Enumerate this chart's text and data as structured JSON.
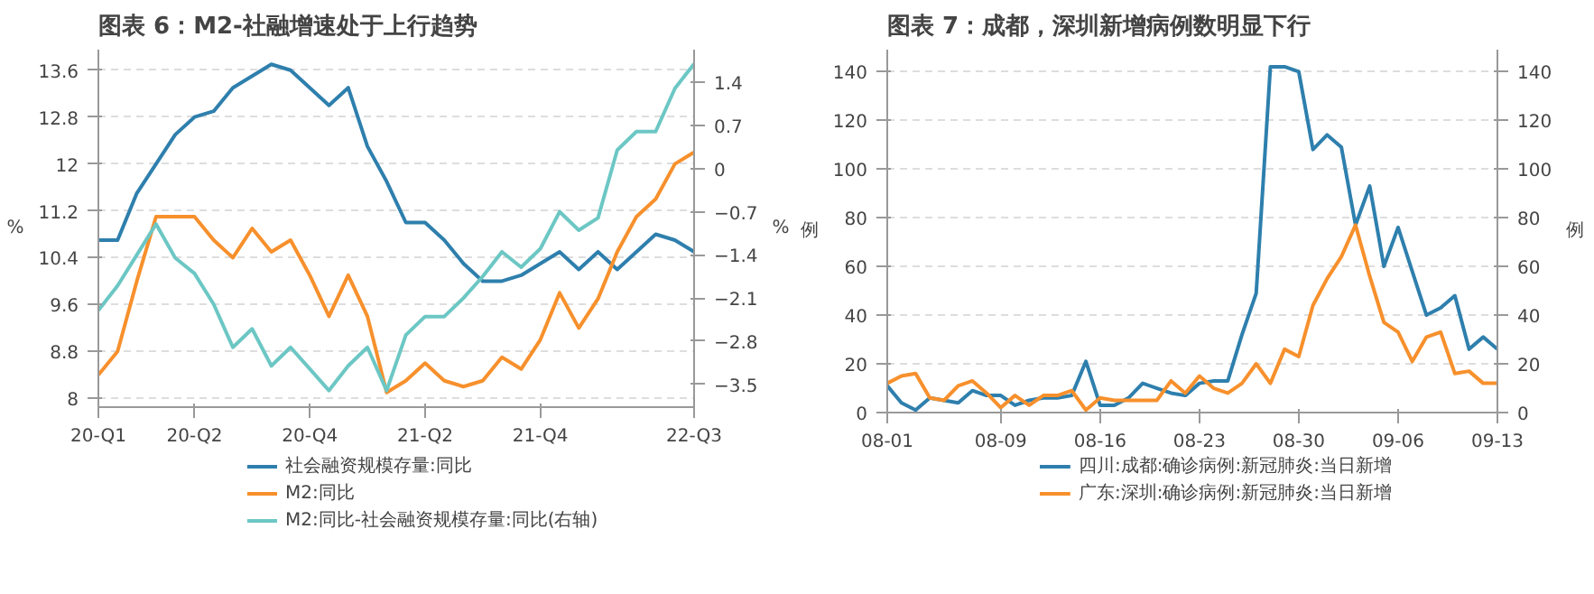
{
  "chart_data": [
    {
      "type": "line",
      "title": "图表 6：M2-社融增速处于上行趋势",
      "ylabel": "%",
      "y2label": "%",
      "categories": [
        "20-Q1",
        null,
        null,
        null,
        null,
        "20-Q2",
        null,
        null,
        null,
        null,
        null,
        "20-Q4",
        null,
        null,
        null,
        null,
        null,
        "21-Q2",
        null,
        null,
        null,
        null,
        null,
        "21-Q4",
        null,
        null,
        null,
        null,
        null,
        null,
        null,
        "22-Q3"
      ],
      "series": [
        {
          "name": "社会融资规模存量:同比",
          "color": "#2e7fad",
          "values": [
            10.7,
            10.7,
            11.5,
            12.0,
            12.5,
            12.8,
            12.9,
            13.3,
            13.5,
            13.7,
            13.6,
            13.3,
            13.0,
            13.3,
            12.3,
            11.7,
            11.0,
            11.0,
            10.7,
            10.3,
            10.0,
            10.0,
            10.1,
            10.3,
            10.5,
            10.2,
            10.5,
            10.2,
            10.5,
            10.8,
            10.7,
            10.5
          ]
        },
        {
          "name": "M2:同比",
          "color": "#f7902c",
          "values": [
            8.4,
            8.8,
            10.0,
            11.1,
            11.1,
            11.1,
            10.7,
            10.4,
            10.9,
            10.5,
            10.7,
            10.1,
            9.4,
            10.1,
            9.4,
            8.1,
            8.3,
            8.6,
            8.3,
            8.2,
            8.3,
            8.7,
            8.5,
            9.0,
            9.8,
            9.2,
            9.7,
            10.5,
            11.1,
            11.4,
            12.0,
            12.2
          ]
        },
        {
          "name": "M2:同比-社会融资规模存量:同比(右轴)",
          "color": "#6cc7c4",
          "axis": "y2",
          "values": [
            -2.3,
            -1.9,
            -1.4,
            -0.9,
            -1.45,
            -1.7,
            -2.2,
            -2.9,
            -2.6,
            -3.2,
            -2.9,
            -3.25,
            -3.6,
            -3.2,
            -2.9,
            -3.6,
            -2.7,
            -2.4,
            -2.4,
            -2.1,
            -1.75,
            -1.35,
            -1.6,
            -1.3,
            -0.7,
            -1.0,
            -0.8,
            0.3,
            0.6,
            0.6,
            1.3,
            1.7
          ]
        }
      ],
      "ylim": [
        7.85,
        13.95
      ],
      "yticks": [
        8,
        8.8,
        9.6,
        10.4,
        11.2,
        12,
        12.8,
        13.6
      ],
      "y2lim": [
        -3.87,
        1.93
      ],
      "y2ticks": [
        -3.5,
        -2.8,
        -2.1,
        -1.4,
        -0.7,
        0,
        0.7,
        1.4
      ],
      "grid": "y",
      "legend": "bottom",
      "line_style": "solid"
    },
    {
      "type": "line",
      "title": "图表 7：成都，深圳新增病例数明显下行",
      "ylabel": "例",
      "y2label": "例",
      "categories": [
        "08-01",
        null,
        null,
        null,
        null,
        null,
        null,
        null,
        "08-09",
        null,
        null,
        null,
        null,
        null,
        null,
        "08-16",
        null,
        null,
        null,
        null,
        null,
        null,
        "08-23",
        null,
        null,
        null,
        null,
        null,
        null,
        "08-30",
        null,
        null,
        null,
        null,
        null,
        null,
        "09-06",
        null,
        null,
        null,
        null,
        null,
        null,
        "09-13"
      ],
      "series": [
        {
          "name": "四川:成都:确诊病例:新冠肺炎:当日新增",
          "color": "#2e7fad",
          "values": [
            11,
            4,
            1,
            6,
            5,
            4,
            9,
            7,
            7,
            3,
            5,
            6,
            6,
            7,
            21,
            3,
            3,
            6,
            12,
            10,
            8,
            7,
            12,
            13,
            13,
            32,
            49,
            142,
            142,
            140,
            108,
            114,
            109,
            77,
            93,
            60,
            76,
            58,
            40,
            43,
            48,
            26,
            31,
            26
          ]
        },
        {
          "name": "广东:深圳:确诊病例:新冠肺炎:当日新增",
          "color": "#f7902c",
          "values": [
            12,
            15,
            16,
            6,
            5,
            11,
            13,
            8,
            2,
            7,
            3,
            7,
            7,
            9,
            1,
            6,
            5,
            5,
            5,
            5,
            13,
            8,
            15,
            10,
            8,
            12,
            20,
            12,
            26,
            23,
            44,
            55,
            64,
            77,
            56,
            37,
            33,
            21,
            31,
            33,
            16,
            17,
            12,
            12
          ]
        }
      ],
      "ylim": [
        0,
        149
      ],
      "yticks": [
        0,
        20,
        40,
        60,
        80,
        100,
        120,
        140
      ],
      "y2lim": [
        0,
        149
      ],
      "y2ticks": [
        0,
        20,
        40,
        60,
        80,
        100,
        120,
        140
      ],
      "grid": "y",
      "legend": "bottom",
      "line_style": "solid"
    }
  ]
}
